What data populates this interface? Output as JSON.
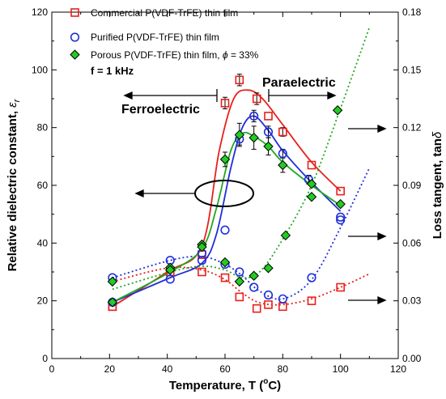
{
  "chart_data": {
    "type": "scatter",
    "xlabel": "Temperature, T (",
    "xlabel_unit": "o",
    "xlabel_tail": "C)",
    "ylabel": "Relative dielectric constant, ",
    "ylabel_symbol": "ε",
    "ylabel_sub": "r",
    "y2label": "Loss tangent, tan",
    "y2label_symbol": "δ",
    "xlim": [
      0,
      120
    ],
    "ylim": [
      0,
      120
    ],
    "y2lim": [
      0,
      0.18
    ],
    "x_ticks": [
      "0",
      "20",
      "40",
      "60",
      "80",
      "100",
      "120"
    ],
    "y_ticks": [
      "0",
      "20",
      "40",
      "60",
      "80",
      "100",
      "120"
    ],
    "y2_ticks": [
      "0.00",
      "0.03",
      "0.06",
      "0.09",
      "0.12",
      "0.15",
      "0.18"
    ],
    "grid": false,
    "legend_position": "top-left",
    "frequency_label": "f = 1 kHz",
    "annotations": [
      {
        "text": "Ferroelectric",
        "x": 75,
        "y": 75
      },
      {
        "text": "Paraelectric",
        "x": 103,
        "y": 94
      }
    ],
    "series": [
      {
        "name": "Commercial P(VDF-TrFE) thin film",
        "color": "#e8201c",
        "marker": "square",
        "dielectric": {
          "x": [
            21,
            41,
            52,
            60,
            65,
            71,
            75,
            80,
            90,
            100
          ],
          "y": [
            18,
            30,
            36,
            88.5,
            96.5,
            90,
            84,
            78.5,
            67,
            58
          ],
          "err": [
            0,
            0,
            0,
            2,
            2,
            2,
            0,
            1.5,
            0,
            0
          ]
        },
        "dielectric_curve": {
          "x": [
            21,
            40,
            52,
            58,
            63,
            68,
            73,
            80,
            90,
            100
          ],
          "y": [
            18,
            30,
            39,
            72,
            90,
            93,
            90,
            81,
            68,
            58
          ]
        },
        "loss": {
          "x": [
            21,
            41,
            52,
            60,
            65,
            71,
            75,
            80,
            90,
            100
          ],
          "y": [
            0.027,
            0.045,
            0.045,
            0.042,
            0.032,
            0.026,
            0.028,
            0.027,
            0.03,
            0.037
          ]
        },
        "loss_curve": {
          "x": [
            21,
            40,
            52,
            60,
            66,
            72,
            80,
            90,
            100,
            110
          ],
          "y": [
            0.04,
            0.047,
            0.046,
            0.041,
            0.034,
            0.029,
            0.028,
            0.031,
            0.037,
            0.044
          ]
        }
      },
      {
        "name": "Purified P(VDF-TrFE) thin film",
        "color": "#1f2fd8",
        "marker": "circle",
        "dielectric": {
          "x": [
            21,
            41,
            52,
            60,
            65,
            70,
            75,
            80,
            89,
            100
          ],
          "y": [
            19.5,
            27.5,
            36.5,
            44.5,
            76,
            84,
            78.5,
            71,
            62,
            49
          ],
          "err": [
            0,
            0,
            0,
            0,
            2,
            2,
            2,
            1.5,
            1.5,
            0
          ]
        },
        "dielectric_curve": {
          "x": [
            21,
            41,
            52,
            57,
            62,
            66,
            70,
            75,
            80,
            89,
            100
          ],
          "y": [
            19.5,
            28,
            33,
            43,
            66,
            80,
            84,
            79,
            72,
            62,
            51
          ]
        },
        "loss": {
          "x": [
            21,
            41,
            52,
            60,
            65,
            70,
            75,
            80,
            90,
            100
          ],
          "y": [
            0.042,
            0.051,
            0.051,
            0.049,
            0.045,
            0.037,
            0.033,
            0.031,
            0.042,
            0.072
          ]
        },
        "loss_curve": {
          "x": [
            21,
            41,
            52,
            60,
            66,
            72,
            80,
            90,
            100,
            110
          ],
          "y": [
            0.042,
            0.051,
            0.053,
            0.049,
            0.043,
            0.035,
            0.031,
            0.041,
            0.068,
            0.099
          ]
        }
      },
      {
        "name": "Porous P(VDF-TrFE) thin film, ",
        "name_symbol": "ϕ",
        "name_tail": " = 33%",
        "color": "#22a722",
        "marker": "diamond",
        "dielectric": {
          "x": [
            21,
            41,
            52,
            60,
            65,
            70,
            75,
            80,
            90,
            100
          ],
          "y": [
            19.5,
            31.5,
            39.5,
            69,
            77.5,
            76.5,
            73.5,
            67,
            60.5,
            53.5
          ],
          "err": [
            0,
            0,
            0,
            2.5,
            4,
            4,
            3,
            2.5,
            0,
            0
          ]
        },
        "dielectric_curve": {
          "x": [
            21,
            41,
            52,
            57,
            62,
            66,
            70,
            75,
            80,
            90,
            100
          ],
          "y": [
            19.5,
            30,
            38,
            52,
            72,
            78,
            77,
            73.5,
            68,
            60,
            53
          ]
        },
        "loss": {
          "x": [
            21,
            41,
            52,
            60,
            65,
            70,
            75,
            81,
            90,
            99
          ],
          "y": [
            0.04,
            0.046,
            0.058,
            0.05,
            0.04,
            0.043,
            0.047,
            0.064,
            0.084,
            0.129
          ]
        },
        "loss_curve": {
          "x": [
            21,
            41,
            52,
            60,
            66,
            72,
            80,
            90,
            100,
            110
          ],
          "y": [
            0.036,
            0.045,
            0.048,
            0.046,
            0.042,
            0.045,
            0.062,
            0.09,
            0.13,
            0.172
          ]
        }
      }
    ]
  }
}
